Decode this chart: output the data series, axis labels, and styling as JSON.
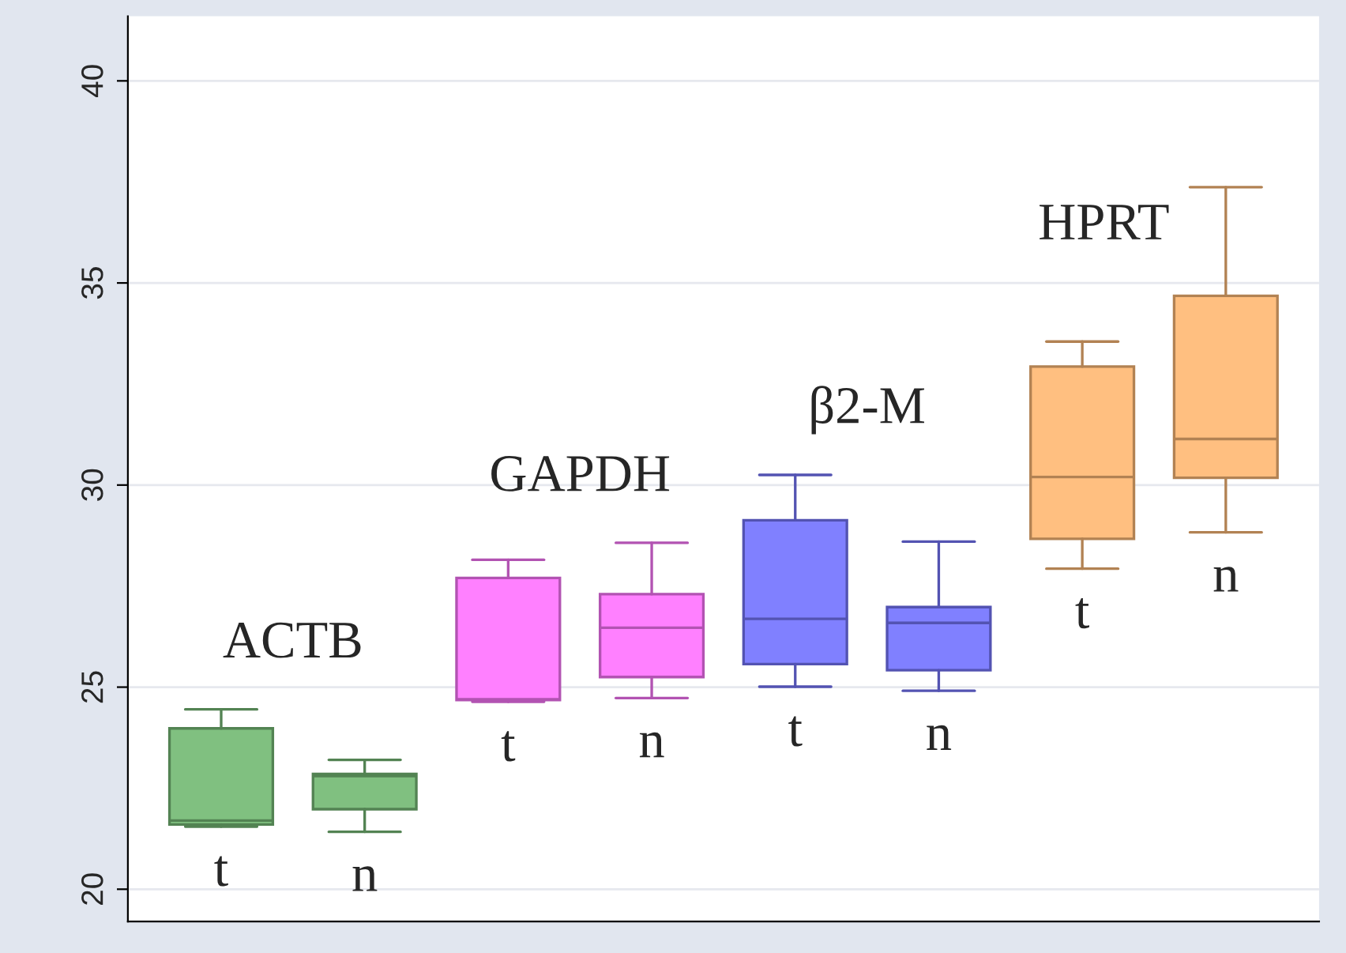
{
  "chart_data": {
    "type": "box",
    "categories": [
      "t",
      "n",
      "t",
      "n",
      "t",
      "n",
      "t",
      "n"
    ],
    "boxes": [
      {
        "low": 21.55,
        "q1": 21.6,
        "median": 21.7,
        "q3": 23.98,
        "high": 24.45
      },
      {
        "low": 21.42,
        "q1": 21.98,
        "median": 22.8,
        "q3": 22.85,
        "high": 23.2
      },
      {
        "low": 24.64,
        "q1": 24.68,
        "median": 24.7,
        "q3": 27.7,
        "high": 28.15
      },
      {
        "low": 24.73,
        "q1": 25.25,
        "median": 26.47,
        "q3": 27.3,
        "high": 28.57
      },
      {
        "low": 25.01,
        "q1": 25.57,
        "median": 26.69,
        "q3": 29.13,
        "high": 30.25
      },
      {
        "low": 24.91,
        "q1": 25.42,
        "median": 26.59,
        "q3": 26.98,
        "high": 28.6
      },
      {
        "low": 27.93,
        "q1": 28.67,
        "median": 30.2,
        "q3": 32.93,
        "high": 33.55
      },
      {
        "low": 28.83,
        "q1": 30.18,
        "median": 31.14,
        "q3": 34.68,
        "high": 37.37
      }
    ],
    "colors": [
      "#80c080",
      "#80c080",
      "#ff80ff",
      "#ff80ff",
      "#8080ff",
      "#8080ff",
      "#ffbf80",
      "#ffbf80"
    ],
    "annotations": [
      "ACTB",
      "GAPDH",
      "β2-M",
      "HPRT"
    ],
    "ylim": [
      19.2,
      41.6
    ],
    "yticks": [
      20,
      25,
      30,
      35,
      40
    ],
    "grid": "y"
  }
}
